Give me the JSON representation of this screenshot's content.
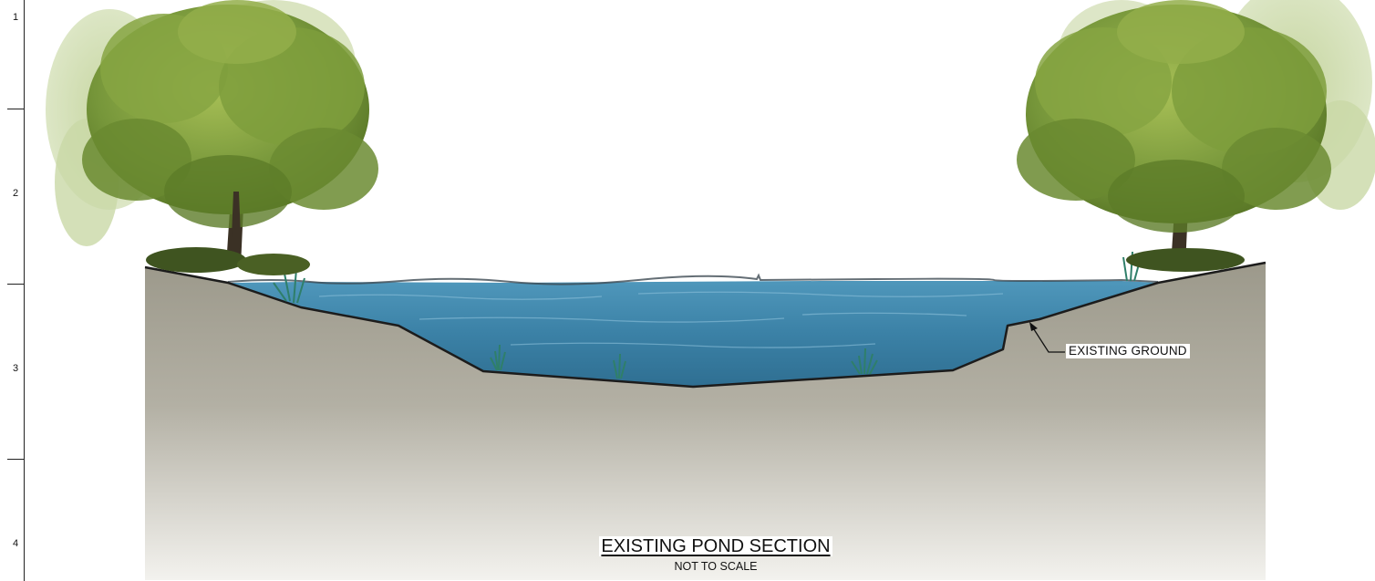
{
  "ruler": {
    "marks": [
      "1",
      "2",
      "3",
      "4"
    ]
  },
  "callout": {
    "label": "EXISTING GROUND"
  },
  "title_block": {
    "title": "EXISTING POND SECTION",
    "subtitle": "NOT TO SCALE"
  },
  "colors": {
    "ground_top": "#a09d90",
    "ground_bottom": "#f4f3f0",
    "water": "#3f86ab",
    "water_light": "#6aa8c6",
    "foliage_dark": "#4d6a1e",
    "foliage_light": "#9bb54c",
    "trunk": "#3b3125",
    "outline": "#1c1c1c"
  }
}
